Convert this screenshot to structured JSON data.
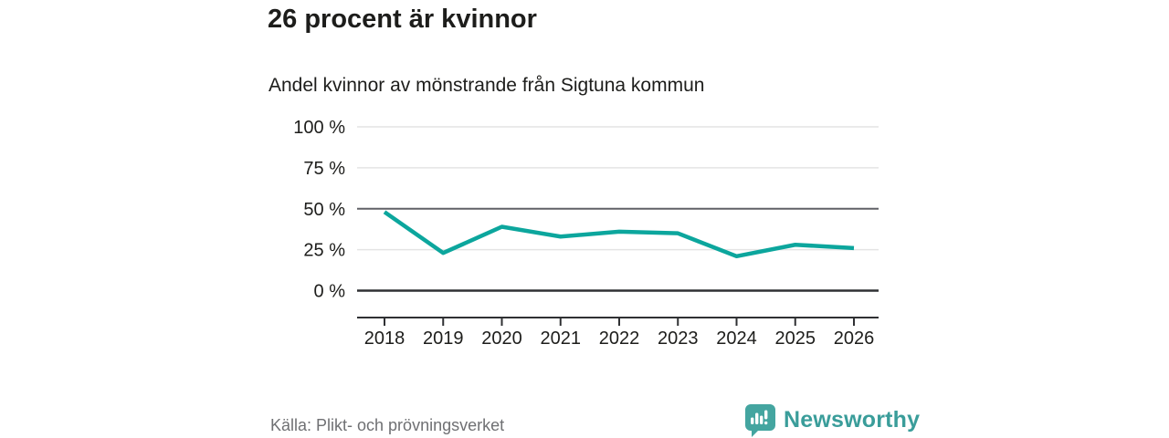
{
  "header": {
    "title": "26 procent är kvinnor",
    "subtitle": "Andel kvinnor av mönstrande från Sigtuna kommun"
  },
  "chart_data": {
    "type": "line",
    "title": "26 procent är kvinnor",
    "subtitle": "Andel kvinnor av mönstrande från Sigtuna kommun",
    "x": [
      "2018",
      "2019",
      "2020",
      "2021",
      "2022",
      "2023",
      "2024",
      "2025",
      "2026"
    ],
    "series": [
      {
        "name": "Andel kvinnor av mönstrande",
        "values": [
          48,
          23,
          39,
          33,
          36,
          35,
          21,
          28,
          26
        ]
      }
    ],
    "unit": "%",
    "xlabel": "",
    "ylabel": "",
    "ylim": [
      0,
      100
    ],
    "yticks": [
      0,
      25,
      50,
      75,
      100
    ],
    "ytick_labels": [
      "0 %",
      "25 %",
      "50 %",
      "75 %",
      "100 %"
    ],
    "grid": true,
    "highlight_gridline_value": 50,
    "legend_position": "none",
    "colors": {
      "line": "#0ca69d",
      "grid_light": "#e4e4e4",
      "grid_emphasis": "#606167",
      "zero_line": "#2f3033",
      "axis": "#2f3033",
      "tick_text": "#1d1d1b"
    }
  },
  "footer": {
    "source": "Källa: Plikt- och prövningsverket"
  },
  "logo": {
    "text": "Newsworthy",
    "icon": "bar-chart-speech-bubble-icon",
    "icon_color": "#44a5a0",
    "text_color": "#3a9d9a"
  }
}
